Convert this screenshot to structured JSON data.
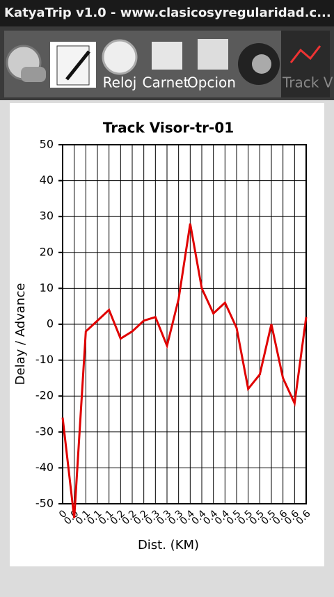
{
  "app_title": "KatyaTrip v1.0 - www.clasicosyregularidad.c...",
  "tabs": [
    "Reloj",
    "Carnet",
    "Opcion",
    "Track V"
  ],
  "chart_data": {
    "type": "line",
    "title": "Track Visor-tr-01",
    "x_label": "Dist. (KM)",
    "y_label": "Delay / Advance",
    "categories": [
      "0",
      "0.0",
      "0.1",
      "0.1",
      "0.1",
      "0.2",
      "0.2",
      "0.2",
      "0.3",
      "0.3",
      "0.3",
      "0.4",
      "0.4",
      "0.4",
      "0.4",
      "0.5",
      "0.5",
      "0.5",
      "0.5",
      "0.6",
      "0.6",
      "0.6"
    ],
    "series": [
      {
        "name": "Delay",
        "color": "#e00000",
        "values": [
          -26,
          -54,
          -2,
          1,
          4,
          -4,
          -2,
          1,
          2,
          -6,
          7,
          28,
          10,
          3,
          6,
          -1,
          -18,
          -14,
          0,
          -15,
          -22,
          2
        ]
      }
    ],
    "ylim": [
      -50,
      50
    ],
    "yticks": [
      -50,
      -40,
      -30,
      -20,
      -10,
      0,
      10,
      20,
      30,
      40,
      50
    ],
    "grid": true
  }
}
